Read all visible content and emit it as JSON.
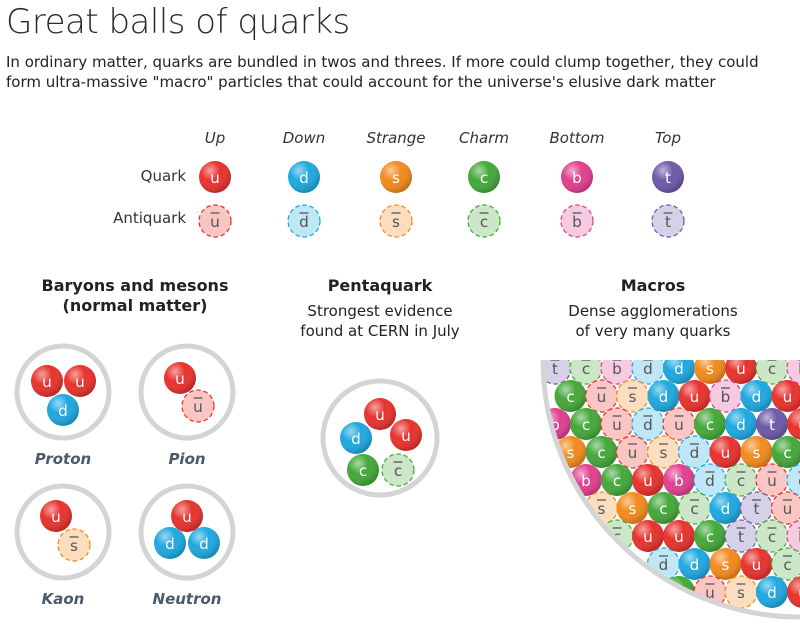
{
  "title": "Great balls of quarks",
  "subtitle": "In ordinary matter, quarks are bundled in twos and threes. If more could clump together, they could form ultra-massive \"macro\" particles that could account for the universe's elusive dark matter",
  "flavours": [
    {
      "name": "Up",
      "symbol": "u",
      "color": "#e8322d"
    },
    {
      "name": "Down",
      "symbol": "d",
      "color": "#1ea8e0"
    },
    {
      "name": "Strange",
      "symbol": "s",
      "color": "#f28a1e"
    },
    {
      "name": "Charm",
      "symbol": "c",
      "color": "#44a83a"
    },
    {
      "name": "Bottom",
      "symbol": "b",
      "color": "#e0408f"
    },
    {
      "name": "Top",
      "symbol": "t",
      "color": "#6b5aa8"
    }
  ],
  "rows": {
    "quark": "Quark",
    "antiquark": "Antiquark"
  },
  "sections": {
    "baryons": {
      "heading_line1": "Baryons and mesons",
      "heading_line2": "(normal matter)"
    },
    "pentaquark": {
      "heading": "Pentaquark",
      "sub_line1": "Strongest evidence",
      "sub_line2": "found at CERN in July"
    },
    "macros": {
      "heading": "Macros",
      "sub_line1": "Dense agglomerations",
      "sub_line2": "of very many quarks"
    }
  },
  "particles": [
    {
      "name": "Proton",
      "quarks": [
        [
          "u",
          false
        ],
        [
          "u",
          false
        ],
        [
          "d",
          false
        ]
      ]
    },
    {
      "name": "Pion",
      "quarks": [
        [
          "u",
          false
        ],
        [
          "u",
          true
        ]
      ]
    },
    {
      "name": "Kaon",
      "quarks": [
        [
          "u",
          false
        ],
        [
          "s",
          true
        ]
      ]
    },
    {
      "name": "Neutron",
      "quarks": [
        [
          "u",
          false
        ],
        [
          "d",
          false
        ],
        [
          "d",
          false
        ]
      ]
    }
  ],
  "pentaquark_quarks": [
    [
      "u",
      false
    ],
    [
      "d",
      false
    ],
    [
      "u",
      false
    ],
    [
      "c",
      false
    ],
    [
      "c",
      true
    ]
  ],
  "macro_quarks": [
    [
      "t",
      true
    ],
    [
      "c",
      true
    ],
    [
      "b",
      true
    ],
    [
      "d",
      true
    ],
    [
      "d",
      false
    ],
    [
      "s",
      false
    ],
    [
      "u",
      false
    ],
    [
      "c",
      true
    ],
    [
      "b",
      true
    ],
    [
      "c",
      false
    ],
    [
      "u",
      true
    ],
    [
      "s",
      true
    ],
    [
      "d",
      false
    ],
    [
      "u",
      false
    ],
    [
      "b",
      true
    ],
    [
      "d",
      false
    ],
    [
      "u",
      false
    ],
    [
      "c",
      true
    ],
    [
      "b",
      false
    ],
    [
      "c",
      false
    ],
    [
      "u",
      true
    ],
    [
      "d",
      true
    ],
    [
      "u",
      true
    ],
    [
      "c",
      false
    ],
    [
      "d",
      false
    ],
    [
      "t",
      false
    ],
    [
      "u",
      false
    ],
    [
      "s",
      false
    ],
    [
      "c",
      false
    ],
    [
      "u",
      true
    ],
    [
      "s",
      true
    ],
    [
      "d",
      true
    ],
    [
      "u",
      false
    ],
    [
      "s",
      false
    ],
    [
      "c",
      false
    ],
    [
      "d",
      false
    ],
    [
      "b",
      false
    ],
    [
      "c",
      false
    ],
    [
      "u",
      false
    ],
    [
      "b",
      false
    ],
    [
      "d",
      true
    ],
    [
      "c",
      true
    ],
    [
      "u",
      true
    ],
    [
      "d",
      true
    ],
    [
      "s",
      true
    ],
    [
      "s",
      false
    ],
    [
      "c",
      false
    ],
    [
      "c",
      true
    ],
    [
      "d",
      false
    ],
    [
      "t",
      true
    ],
    [
      "u",
      true
    ],
    [
      "b",
      false
    ],
    [
      "c",
      true
    ],
    [
      "u",
      false
    ],
    [
      "u",
      false
    ],
    [
      "c",
      false
    ]
  ]
}
